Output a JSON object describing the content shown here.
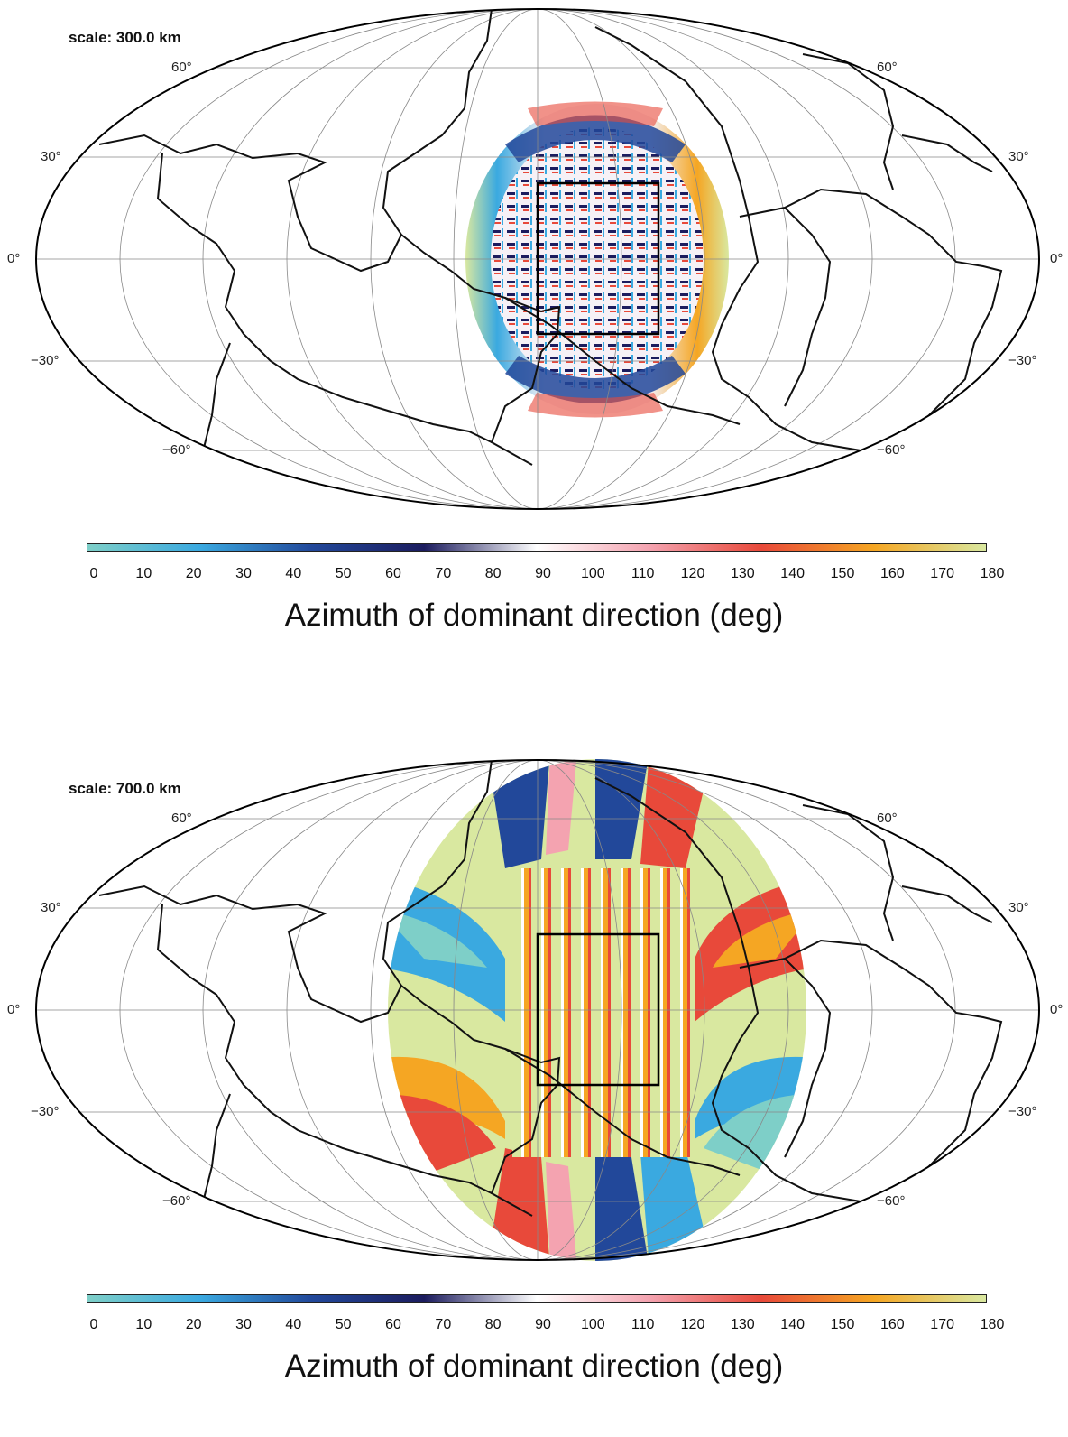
{
  "panels": [
    {
      "scale_label": "scale: 300.0 km",
      "colorbar_title": "Azimuth of dominant direction (deg)"
    },
    {
      "scale_label": "scale: 700.0 km",
      "colorbar_title": "Azimuth of dominant direction (deg)"
    }
  ],
  "latitude_labels": {
    "n60": "60°",
    "n30": "30°",
    "eq": "0°",
    "s30": "−30°",
    "s60": "−60°"
  },
  "colorbar": {
    "ticks": [
      "0",
      "10",
      "20",
      "30",
      "40",
      "50",
      "60",
      "70",
      "80",
      "90",
      "100",
      "110",
      "120",
      "130",
      "140",
      "150",
      "160",
      "170",
      "180"
    ],
    "range": [
      0,
      180
    ],
    "colormap": [
      "#7ecfc8",
      "#3aa9e0",
      "#22489a",
      "#1c1c5e",
      "#ffffff",
      "#f4a3b0",
      "#e8493a",
      "#f5a623",
      "#d9e8a0"
    ]
  },
  "projection": "Mollweide",
  "graticule_step_deg": 30,
  "region_box_color": "#000000"
}
